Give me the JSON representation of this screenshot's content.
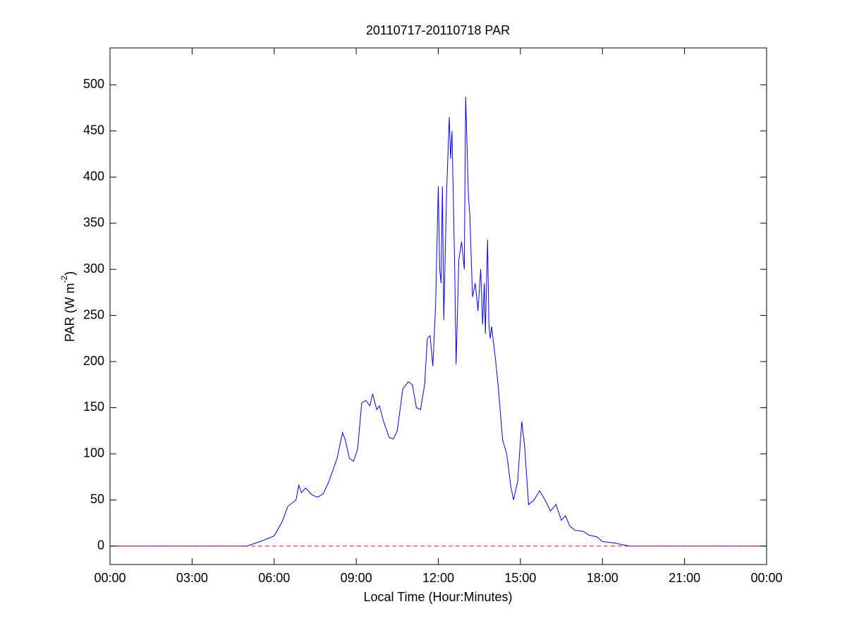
{
  "chart_data": {
    "type": "line",
    "title": "20110717-20110718 PAR",
    "xlabel": "Local Time (Hour:Minutes)",
    "ylabel": [
      "PAR (W m",
      "-2",
      ")"
    ],
    "xlim": [
      0,
      24
    ],
    "ylim": [
      -20,
      540
    ],
    "xticks": [
      {
        "value": 0,
        "label": "00:00"
      },
      {
        "value": 3,
        "label": "03:00"
      },
      {
        "value": 6,
        "label": "06:00"
      },
      {
        "value": 9,
        "label": "09:00"
      },
      {
        "value": 12,
        "label": "12:00"
      },
      {
        "value": 15,
        "label": "15:00"
      },
      {
        "value": 18,
        "label": "18:00"
      },
      {
        "value": 21,
        "label": "21:00"
      },
      {
        "value": 24,
        "label": "00:00"
      }
    ],
    "yticks": [
      0,
      50,
      100,
      150,
      200,
      250,
      300,
      350,
      400,
      450,
      500
    ],
    "grid": false,
    "series": [
      {
        "color": "#0000ff",
        "style": "solid",
        "x": [
          0,
          5.0,
          5.5,
          6.0,
          6.3,
          6.5,
          6.8,
          6.9,
          7.0,
          7.15,
          7.4,
          7.6,
          7.8,
          8.0,
          8.3,
          8.5,
          8.6,
          8.75,
          8.9,
          9.05,
          9.2,
          9.35,
          9.5,
          9.6,
          9.75,
          9.85,
          10.0,
          10.2,
          10.35,
          10.5,
          10.7,
          10.9,
          11.05,
          11.2,
          11.35,
          11.5,
          11.6,
          11.7,
          11.8,
          11.9,
          12.0,
          12.05,
          12.1,
          12.15,
          12.2,
          12.3,
          12.4,
          12.45,
          12.5,
          12.6,
          12.65,
          12.75,
          12.85,
          12.95,
          13.0,
          13.1,
          13.15,
          13.25,
          13.35,
          13.45,
          13.55,
          13.62,
          13.68,
          13.72,
          13.8,
          13.85,
          13.9,
          13.95,
          14.0,
          14.1,
          14.2,
          14.35,
          14.5,
          14.65,
          14.75,
          14.9,
          15.05,
          15.15,
          15.3,
          15.5,
          15.7,
          15.9,
          16.1,
          16.3,
          16.5,
          16.65,
          16.8,
          17.0,
          17.3,
          17.5,
          17.8,
          18.0,
          18.5,
          18.8,
          19.0,
          24
        ],
        "values": [
          0,
          0,
          5,
          11,
          27,
          43,
          50,
          66,
          58,
          63,
          55,
          53,
          57,
          70,
          95,
          123,
          115,
          95,
          92,
          105,
          155,
          158,
          152,
          165,
          148,
          152,
          135,
          118,
          116,
          125,
          170,
          178,
          175,
          150,
          148,
          175,
          225,
          228,
          195,
          260,
          390,
          300,
          285,
          390,
          245,
          380,
          465,
          420,
          450,
          300,
          197,
          310,
          330,
          300,
          487,
          380,
          360,
          270,
          285,
          255,
          300,
          240,
          285,
          230,
          332,
          240,
          225,
          238,
          225,
          200,
          170,
          115,
          100,
          65,
          50,
          70,
          135,
          110,
          45,
          50,
          60,
          50,
          38,
          45,
          28,
          33,
          22,
          17,
          16,
          12,
          10,
          5,
          3,
          1,
          0,
          0
        ]
      },
      {
        "color": "#ff0000",
        "style": "dashed",
        "x": [
          0,
          24
        ],
        "values": [
          0,
          0
        ]
      }
    ]
  }
}
